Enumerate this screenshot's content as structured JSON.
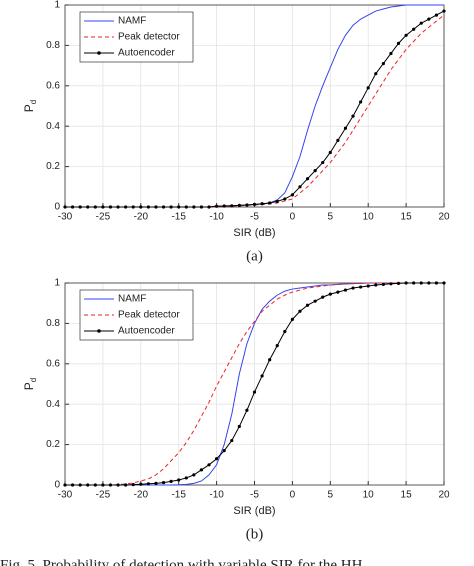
{
  "chart_data": [
    {
      "type": "line",
      "xlabel": "SIR (dB)",
      "ylabel": "P",
      "ylabel_subscript": "d",
      "label": "(a)",
      "x": [
        -30,
        -29,
        -28,
        -27,
        -26,
        -25,
        -24,
        -23,
        -22,
        -21,
        -20,
        -19,
        -18,
        -17,
        -16,
        -15,
        -14,
        -13,
        -12,
        -11,
        -10,
        -9,
        -8,
        -7,
        -6,
        -5,
        -4,
        -3,
        -2,
        -1,
        0,
        1,
        2,
        3,
        4,
        5,
        6,
        7,
        8,
        9,
        10,
        11,
        12,
        13,
        14,
        15,
        16,
        17,
        18,
        19,
        20
      ],
      "xlim": [
        -30,
        20
      ],
      "xticks": [
        -30,
        -25,
        -20,
        -15,
        -10,
        -5,
        0,
        5,
        10,
        15,
        20
      ],
      "ylim": [
        0,
        1
      ],
      "yticks": [
        0,
        0.2,
        0.4,
        0.6,
        0.8,
        1
      ],
      "grid": true,
      "legend": "upper left",
      "series": [
        {
          "name": "NAMF",
          "color": "#3344ee",
          "linestyle": "solid",
          "marker": "none",
          "values": [
            0,
            0,
            0,
            0,
            0,
            0,
            0,
            0,
            0,
            0,
            0,
            0,
            0,
            0,
            0,
            0,
            0,
            0,
            0,
            0,
            0.005,
            0.005,
            0.007,
            0.008,
            0.01,
            0.012,
            0.015,
            0.02,
            0.035,
            0.07,
            0.15,
            0.25,
            0.38,
            0.5,
            0.6,
            0.69,
            0.78,
            0.85,
            0.9,
            0.93,
            0.95,
            0.97,
            0.98,
            0.99,
            0.995,
            1,
            1,
            1,
            1,
            1,
            1
          ]
        },
        {
          "name": "Peak detector",
          "color": "#ee2222",
          "linestyle": "dashed",
          "marker": "none",
          "values": [
            0,
            0,
            0,
            0,
            0,
            0,
            0,
            0,
            0,
            0,
            0,
            0,
            0,
            0,
            0,
            0,
            0,
            0,
            0,
            0,
            0.003,
            0.004,
            0.005,
            0.006,
            0.008,
            0.01,
            0.012,
            0.015,
            0.02,
            0.03,
            0.04,
            0.07,
            0.1,
            0.14,
            0.18,
            0.22,
            0.27,
            0.32,
            0.38,
            0.44,
            0.5,
            0.56,
            0.62,
            0.68,
            0.73,
            0.78,
            0.82,
            0.86,
            0.89,
            0.92,
            0.95
          ]
        },
        {
          "name": "Autoencoder",
          "color": "#000000",
          "linestyle": "solid",
          "marker": "dot",
          "values": [
            0,
            0,
            0,
            0,
            0,
            0,
            0,
            0,
            0,
            0,
            0,
            0,
            0,
            0,
            0,
            0,
            0,
            0,
            0,
            0,
            0.004,
            0.005,
            0.006,
            0.008,
            0.01,
            0.013,
            0.016,
            0.02,
            0.028,
            0.04,
            0.06,
            0.1,
            0.14,
            0.18,
            0.22,
            0.27,
            0.33,
            0.39,
            0.45,
            0.52,
            0.59,
            0.66,
            0.71,
            0.76,
            0.81,
            0.85,
            0.88,
            0.91,
            0.93,
            0.95,
            0.97
          ]
        }
      ]
    },
    {
      "type": "line",
      "xlabel": "SIR (dB)",
      "ylabel": "P",
      "ylabel_subscript": "d",
      "label": "(b)",
      "x": [
        -30,
        -29,
        -28,
        -27,
        -26,
        -25,
        -24,
        -23,
        -22,
        -21,
        -20,
        -19,
        -18,
        -17,
        -16,
        -15,
        -14,
        -13,
        -12,
        -11,
        -10,
        -9,
        -8,
        -7,
        -6,
        -5,
        -4,
        -3,
        -2,
        -1,
        0,
        1,
        2,
        3,
        4,
        5,
        6,
        7,
        8,
        9,
        10,
        11,
        12,
        13,
        14,
        15,
        16,
        17,
        18,
        19,
        20
      ],
      "xlim": [
        -30,
        20
      ],
      "xticks": [
        -30,
        -25,
        -20,
        -15,
        -10,
        -5,
        0,
        5,
        10,
        15,
        20
      ],
      "ylim": [
        0,
        1
      ],
      "yticks": [
        0,
        0.2,
        0.4,
        0.6,
        0.8,
        1
      ],
      "grid": true,
      "legend": "upper left",
      "series": [
        {
          "name": "NAMF",
          "color": "#3344ee",
          "linestyle": "solid",
          "marker": "none",
          "values": [
            0,
            0,
            0,
            0,
            0,
            0,
            0,
            0,
            0,
            0,
            0,
            0,
            0,
            0,
            0,
            0.001,
            0.003,
            0.008,
            0.02,
            0.05,
            0.1,
            0.2,
            0.35,
            0.55,
            0.7,
            0.8,
            0.87,
            0.91,
            0.94,
            0.96,
            0.97,
            0.975,
            0.98,
            0.985,
            0.99,
            0.99,
            0.993,
            0.995,
            0.997,
            0.998,
            1,
            1,
            1,
            1,
            1,
            1,
            1,
            1,
            1,
            1,
            1
          ]
        },
        {
          "name": "Peak detector",
          "color": "#ee2222",
          "linestyle": "dashed",
          "marker": "none",
          "values": [
            0,
            0,
            0,
            0,
            0,
            0,
            0,
            0.002,
            0.005,
            0.01,
            0.02,
            0.03,
            0.05,
            0.08,
            0.12,
            0.16,
            0.21,
            0.27,
            0.34,
            0.41,
            0.49,
            0.56,
            0.63,
            0.7,
            0.76,
            0.81,
            0.86,
            0.89,
            0.92,
            0.94,
            0.955,
            0.965,
            0.975,
            0.98,
            0.985,
            0.99,
            0.993,
            0.995,
            0.997,
            0.998,
            1,
            1,
            1,
            1,
            1,
            1,
            1,
            1,
            1,
            1,
            1
          ]
        },
        {
          "name": "Autoencoder",
          "color": "#000000",
          "linestyle": "solid",
          "marker": "dot",
          "values": [
            0,
            0,
            0,
            0,
            0,
            0,
            0,
            0,
            0,
            0.002,
            0.004,
            0.006,
            0.008,
            0.012,
            0.018,
            0.025,
            0.035,
            0.05,
            0.075,
            0.1,
            0.13,
            0.17,
            0.22,
            0.29,
            0.37,
            0.46,
            0.54,
            0.62,
            0.69,
            0.76,
            0.82,
            0.86,
            0.89,
            0.91,
            0.93,
            0.945,
            0.955,
            0.965,
            0.975,
            0.98,
            0.985,
            0.99,
            0.993,
            0.996,
            0.998,
            1,
            1,
            1,
            1,
            1,
            1
          ]
        }
      ]
    }
  ],
  "figure_caption": "Fig. 5. Probability of detection with variable SIR for the HH"
}
